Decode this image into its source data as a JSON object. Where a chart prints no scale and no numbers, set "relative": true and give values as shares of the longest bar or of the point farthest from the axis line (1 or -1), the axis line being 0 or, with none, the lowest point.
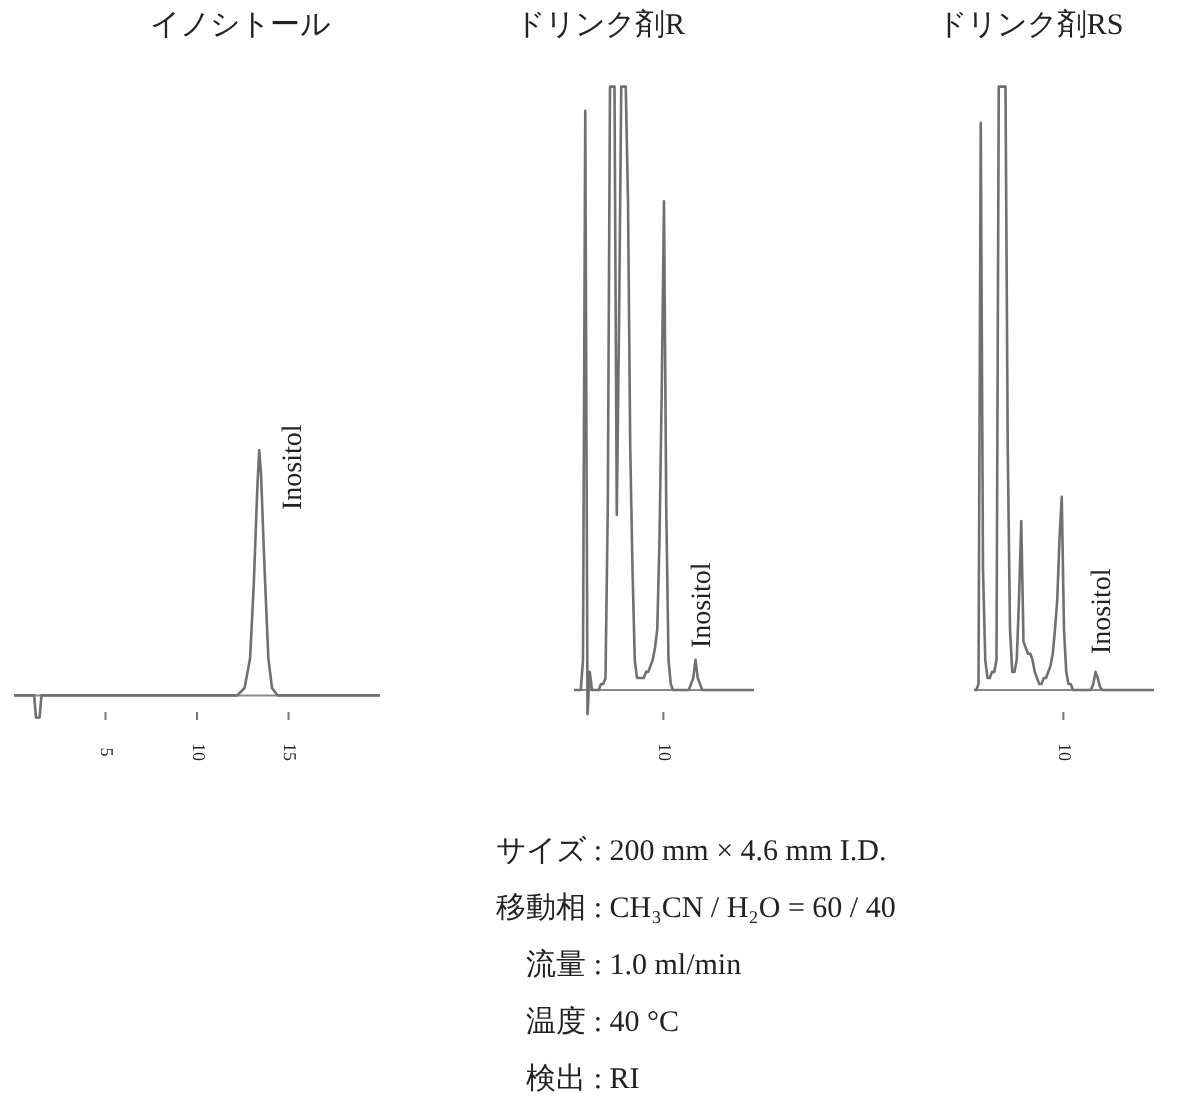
{
  "chart_data": [
    {
      "type": "line",
      "title": "イノシトール",
      "relative": true,
      "xlim": [
        0,
        20
      ],
      "xticks": [
        5,
        10,
        15
      ],
      "series": [
        {
          "color": "#707070",
          "x": [
            0,
            1.1,
            1.2,
            1.4,
            1.5,
            12.2,
            12.6,
            12.9,
            13.1,
            13.3,
            13.4,
            13.5,
            13.7,
            13.9,
            14.1,
            14.4,
            20
          ],
          "values": [
            0,
            0,
            -0.09,
            -0.09,
            0,
            0,
            0.03,
            0.15,
            0.45,
            0.85,
            1,
            0.9,
            0.5,
            0.15,
            0.03,
            0,
            0
          ]
        }
      ],
      "annotations": [
        {
          "text": "Inositol",
          "x": 13.4,
          "y": 1
        }
      ]
    },
    {
      "type": "line",
      "title": "ドリンク剤R",
      "relative": true,
      "categories": [
        null,
        null,
        null,
        null,
        null,
        null,
        null,
        null,
        null,
        null,
        null,
        null,
        null,
        null,
        null,
        null,
        null,
        null,
        null,
        null,
        null,
        null,
        null,
        null,
        null,
        null,
        null,
        null,
        null,
        null,
        null,
        null,
        null,
        null,
        null,
        null,
        null,
        null,
        null,
        null,
        null,
        null,
        null,
        null,
        null,
        null,
        null,
        null,
        null,
        null,
        null,
        null,
        null,
        null,
        null,
        null,
        null,
        null,
        null,
        null,
        null,
        null,
        null,
        null,
        null,
        null,
        null,
        null,
        null,
        null,
        null,
        null,
        null,
        null,
        null,
        null,
        null,
        null,
        null,
        null,
        null
      ],
      "series": [
        {
          "color": "#707070",
          "values": [
            0,
            0,
            0,
            0,
            0.05,
            0.96,
            -0.04,
            0.03,
            0,
            0,
            0,
            0,
            0.01,
            0.01,
            0.02,
            0.3,
            1,
            1,
            1,
            0.29,
            0.6,
            1,
            1,
            1,
            0.81,
            0.4,
            0.2,
            0.05,
            0.02,
            0.02,
            0.02,
            0.02,
            0.03,
            0.03,
            0.04,
            0.05,
            0.07,
            0.1,
            0.25,
            0.5,
            0.81,
            0.3,
            0.05,
            0.01,
            0,
            0,
            0,
            0,
            0,
            0,
            0,
            0,
            0.01,
            0.02,
            0.05,
            0.02,
            0.01,
            0,
            0,
            0,
            0,
            0,
            0,
            0,
            0,
            0,
            0,
            0,
            0,
            0,
            0,
            0,
            0,
            0,
            0,
            0,
            0,
            0,
            0,
            0,
            0
          ]
        }
      ],
      "annotations": [
        "Inositol",
        "10"
      ]
    },
    {
      "type": "line",
      "title": "ドリンク剤RS",
      "relative": true,
      "categories": [
        null,
        null,
        null,
        null,
        null,
        null,
        null,
        null,
        null,
        null,
        null,
        null,
        null,
        null,
        null,
        null,
        null,
        null,
        null,
        null,
        null,
        null,
        null,
        null,
        null,
        null,
        null,
        null,
        null,
        null,
        null,
        null,
        null,
        null,
        null,
        null,
        null,
        null,
        null,
        null,
        null,
        null,
        null,
        null,
        null,
        null,
        null,
        null,
        null,
        null,
        null,
        null,
        null,
        null,
        null,
        null,
        null,
        null,
        null,
        null,
        null,
        null,
        null,
        null,
        null,
        null,
        null,
        null,
        null,
        null,
        null,
        null,
        null,
        null,
        null,
        null,
        null,
        null,
        null,
        null,
        null
      ],
      "series": [
        {
          "color": "#707070",
          "values": [
            0,
            0,
            0.01,
            0.94,
            0.2,
            0.05,
            0.02,
            0.02,
            0.03,
            0.03,
            0.05,
            1,
            1,
            1,
            1,
            0.4,
            0.1,
            0.03,
            0.03,
            0.05,
            0.15,
            0.28,
            0.08,
            0.07,
            0.06,
            0.06,
            0.05,
            0.03,
            0.02,
            0.01,
            0.01,
            0.02,
            0.02,
            0.03,
            0.04,
            0.06,
            0.1,
            0.15,
            0.25,
            0.32,
            0.1,
            0.03,
            0.01,
            0.01,
            0,
            0,
            0,
            0,
            0,
            0,
            0,
            0,
            0,
            0.01,
            0.03,
            0.02,
            0.005,
            0,
            0,
            0,
            0,
            0,
            0,
            0,
            0,
            0,
            0,
            0,
            0,
            0,
            0,
            0,
            0,
            0,
            0,
            0,
            0,
            0,
            0,
            0,
            0
          ]
        }
      ],
      "annotations": [
        "Inositol",
        "10"
      ]
    },
    {
      "type": "other",
      "annotations": [
        "サイズ : 200 mm × 4.6 mm I.D.",
        "移動相 : CH₃CN / H₂O = 60 / 40",
        "流量 : 1.0 ml/min",
        "温度 : 40 °C",
        "検出 : RI"
      ]
    }
  ]
}
